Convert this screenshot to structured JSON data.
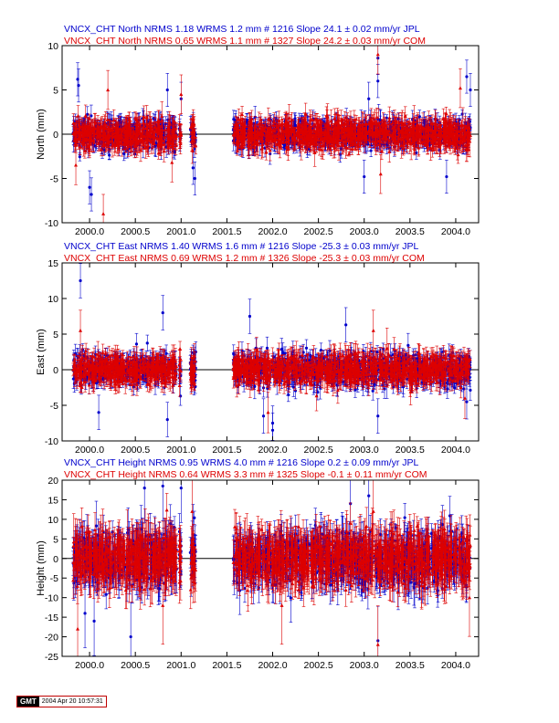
{
  "chart_data": [
    {
      "type": "scatter",
      "header_lines": [
        {
          "text": "VNCX_CHT North NRMS 1.18 WRMS  1.2 mm # 1216 Slope   24.1 ±  0.02 mm/yr JPL",
          "color": "#0000cc"
        },
        {
          "text": "VNCX_CHT North NRMS 0.65 WRMS  1.1 mm # 1327 Slope   24.2 ±  0.03 mm/yr COM",
          "color": "#dd0000"
        }
      ],
      "ylabel": "North (mm)",
      "xlim": [
        1999.7,
        2004.25
      ],
      "ylim": [
        -10,
        10
      ],
      "yticks": [
        -10,
        -5,
        0,
        5,
        10
      ],
      "xticks": [
        2000.0,
        2000.5,
        2001.0,
        2001.5,
        2002.0,
        2002.5,
        2003.0,
        2003.5,
        2004.0
      ],
      "xtick_labels": [
        "2000.0",
        "2000.5",
        "2001.0",
        "2001.5",
        "2002.0",
        "2002.5",
        "2003.0",
        "2003.5",
        "2004.0"
      ],
      "zero_line": true,
      "segments": [
        [
          1999.82,
          2000.95
        ],
        [
          2000.98,
          2001.0
        ],
        [
          2001.1,
          2001.16
        ],
        [
          2001.57,
          2004.16
        ]
      ],
      "series": [
        {
          "name": "JPL",
          "color": "#0000cc",
          "marker": "circle",
          "n": 1216,
          "spread": 0.8,
          "err": 0.85,
          "errJitter": 0.5,
          "seed": 11,
          "outliers": [
            [
              1999.87,
              6.2
            ],
            [
              1999.88,
              5.5
            ],
            [
              2000.85,
              5.0
            ],
            [
              2000.0,
              -6.0
            ],
            [
              2000.02,
              -6.8
            ],
            [
              2001.0,
              4.0
            ],
            [
              2001.13,
              -3.8
            ],
            [
              2001.15,
              -5.0
            ],
            [
              2003.15,
              8.6
            ],
            [
              2003.15,
              6.0
            ],
            [
              2003.0,
              -4.8
            ],
            [
              2003.9,
              -4.8
            ],
            [
              2004.12,
              6.5
            ],
            [
              2004.16,
              5.0
            ],
            [
              2003.05,
              4.0
            ]
          ]
        },
        {
          "name": "COM",
          "color": "#dd0000",
          "marker": "triangle",
          "n": 1327,
          "spread": 0.8,
          "err": 1.0,
          "errJitter": 0.6,
          "seed": 23,
          "outliers": [
            [
              2000.15,
              -9.0
            ],
            [
              2000.2,
              5.0
            ],
            [
              1999.85,
              -3.5
            ],
            [
              2000.9,
              -3.2
            ],
            [
              2003.15,
              9.0
            ],
            [
              2003.18,
              -4.5
            ],
            [
              2004.05,
              5.2
            ],
            [
              2001.0,
              4.5
            ]
          ]
        }
      ]
    },
    {
      "type": "scatter",
      "header_lines": [
        {
          "text": "VNCX_CHT East NRMS 1.40 WRMS  1.6 mm # 1216 Slope  -25.3 ±  0.03 mm/yr JPL",
          "color": "#0000cc"
        },
        {
          "text": "VNCX_CHT East NRMS 0.69 WRMS  1.2 mm # 1326 Slope  -25.3 ±  0.03 mm/yr COM",
          "color": "#dd0000"
        }
      ],
      "ylabel": "East (mm)",
      "xlim": [
        1999.7,
        2004.25
      ],
      "ylim": [
        -10,
        15
      ],
      "yticks": [
        -10,
        -5,
        0,
        5,
        10,
        15
      ],
      "xticks": [
        2000.0,
        2000.5,
        2001.0,
        2001.5,
        2002.0,
        2002.5,
        2003.0,
        2003.5,
        2004.0
      ],
      "xtick_labels": [
        "2000.0",
        "2000.5",
        "2001.0",
        "2001.5",
        "2002.0",
        "2002.5",
        "2003.0",
        "2003.5",
        "2004.0"
      ],
      "zero_line": true,
      "segments": [
        [
          1999.82,
          2000.95
        ],
        [
          2000.98,
          2001.0
        ],
        [
          2001.1,
          2001.16
        ],
        [
          2001.57,
          2004.16
        ]
      ],
      "series": [
        {
          "name": "JPL",
          "color": "#0000cc",
          "marker": "circle",
          "n": 1216,
          "spread": 1.1,
          "err": 1.1,
          "errJitter": 0.6,
          "seed": 37,
          "outliers": [
            [
              1999.9,
              12.5
            ],
            [
              2000.8,
              8.0
            ],
            [
              2001.75,
              7.5
            ],
            [
              2002.0,
              -8.5
            ],
            [
              2002.0,
              -7.5
            ],
            [
              2001.9,
              -6.5
            ],
            [
              2002.8,
              6.3
            ],
            [
              2000.1,
              -6.0
            ],
            [
              2000.85,
              -7.0
            ],
            [
              2003.15,
              -6.5
            ],
            [
              2004.12,
              -4.5
            ]
          ]
        },
        {
          "name": "COM",
          "color": "#dd0000",
          "marker": "triangle",
          "n": 1326,
          "spread": 1.0,
          "err": 1.3,
          "errJitter": 0.7,
          "seed": 41,
          "outliers": [
            [
              1999.9,
              5.5
            ],
            [
              2003.25,
              3.0
            ],
            [
              2001.95,
              -6.0
            ],
            [
              2003.1,
              5.5
            ],
            [
              2004.1,
              -4.0
            ]
          ]
        }
      ]
    },
    {
      "type": "scatter",
      "header_lines": [
        {
          "text": "VNCX_CHT Height NRMS 0.95 WRMS  4.0 mm # 1216 Slope    0.2 ±  0.09 mm/yr JPL",
          "color": "#0000cc"
        },
        {
          "text": "VNCX_CHT Height NRMS 0.64 WRMS  3.3 mm # 1325 Slope   -0.1 ±  0.11 mm/yr COM",
          "color": "#dd0000"
        }
      ],
      "ylabel": "Height (mm)",
      "xlim": [
        1999.7,
        2004.25
      ],
      "ylim": [
        -25,
        20
      ],
      "yticks": [
        -25,
        -20,
        -15,
        -10,
        -5,
        0,
        5,
        10,
        15,
        20
      ],
      "xticks": [
        2000.0,
        2000.5,
        2001.0,
        2001.5,
        2002.0,
        2002.5,
        2003.0,
        2003.5,
        2004.0
      ],
      "xtick_labels": [
        "2000.0",
        "2000.5",
        "2001.0",
        "2001.5",
        "2002.0",
        "2002.5",
        "2003.0",
        "2003.5",
        "2004.0"
      ],
      "zero_line": true,
      "segments": [
        [
          1999.82,
          2000.95
        ],
        [
          2000.98,
          2001.0
        ],
        [
          2001.1,
          2001.16
        ],
        [
          2001.57,
          2004.16
        ]
      ],
      "series": [
        {
          "name": "JPL",
          "color": "#0000cc",
          "marker": "circle",
          "n": 1216,
          "spread": 3.2,
          "err": 4.0,
          "errJitter": 2.0,
          "seed": 53,
          "outliers": [
            [
              2000.6,
              18.0
            ],
            [
              2000.8,
              18.5
            ],
            [
              2001.0,
              18.0
            ],
            [
              2003.05,
              16.0
            ],
            [
              2000.05,
              -16.0
            ],
            [
              2003.15,
              -21.0
            ],
            [
              2001.13,
              5.0
            ],
            [
              2000.45,
              -20.0
            ],
            [
              2002.85,
              14.0
            ],
            [
              1999.95,
              -14.0
            ]
          ]
        },
        {
          "name": "COM",
          "color": "#dd0000",
          "marker": "triangle",
          "n": 1325,
          "spread": 3.0,
          "err": 4.5,
          "errJitter": 2.2,
          "seed": 67,
          "outliers": [
            [
              1999.87,
              -18.0
            ],
            [
              2000.8,
              -12.0
            ],
            [
              2001.12,
              12.0
            ],
            [
              2003.1,
              12.0
            ],
            [
              2003.15,
              -22.0
            ],
            [
              2004.15,
              -10.0
            ],
            [
              2002.1,
              -12.0
            ]
          ]
        }
      ]
    }
  ],
  "footer": {
    "logo": "GMT",
    "timestamp": "2004 Apr 20 10:57:31"
  }
}
